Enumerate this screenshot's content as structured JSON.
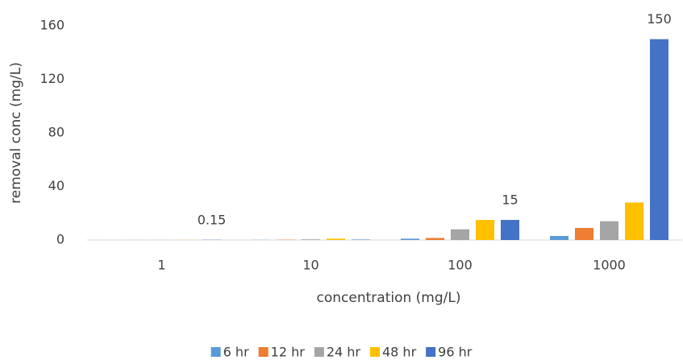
{
  "chart_data": {
    "type": "bar",
    "x_label": "concentration (mg/L)",
    "y_label": "removal conc (mg/L)",
    "categories": [
      "1",
      "10",
      "100",
      "1000"
    ],
    "series": [
      {
        "name": "6 hr",
        "color": "#5b9bd5",
        "values": [
          0.01,
          0.1,
          1,
          3
        ]
      },
      {
        "name": "12 hr",
        "color": "#ed7d31",
        "values": [
          0.02,
          0.2,
          1.5,
          9
        ]
      },
      {
        "name": "24 hr",
        "color": "#a5a5a5",
        "values": [
          0.04,
          0.5,
          8,
          14
        ]
      },
      {
        "name": "48 hr",
        "color": "#ffc000",
        "values": [
          0.08,
          1,
          15,
          28
        ]
      },
      {
        "name": "96 hr",
        "color": "#4472c4",
        "values": [
          0.15,
          0.3,
          15,
          150
        ],
        "value_labels": [
          "0.15",
          null,
          "15",
          "150"
        ]
      }
    ],
    "ylim": [
      0,
      160
    ],
    "yticks": [
      0,
      40,
      80,
      120,
      160
    ],
    "grid": false,
    "legend": "bottom"
  }
}
